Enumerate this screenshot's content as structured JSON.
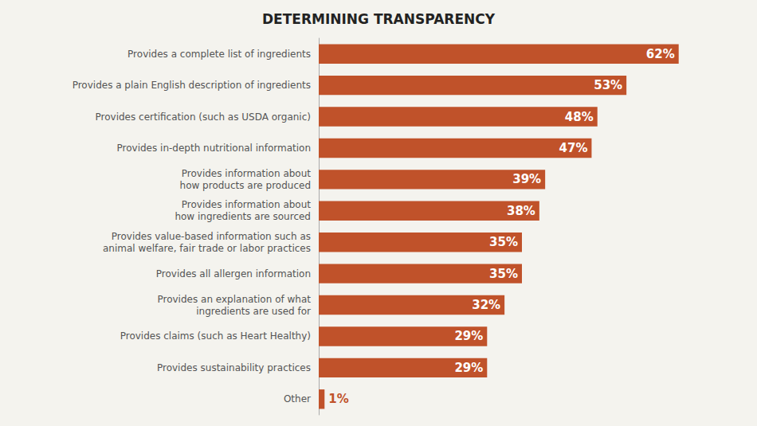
{
  "chart_data": {
    "type": "bar",
    "orientation": "horizontal",
    "title": "DETERMINING TRANSPARENCY",
    "categories": [
      "Provides a complete list of ingredients",
      "Provides a plain English description of ingredients",
      "Provides certification (such as USDA organic)",
      "Provides in-depth nutritional information",
      "Provides information about\nhow products are produced",
      "Provides information about\nhow ingredients are sourced",
      "Provides value-based information such as\nanimal welfare, fair trade or labor practices",
      "Provides all allergen information",
      "Provides an explanation of what\ningredients are used for",
      "Provides claims (such as Heart Healthy)",
      "Provides sustainability practices",
      "Other"
    ],
    "values": [
      62,
      53,
      48,
      47,
      39,
      38,
      35,
      35,
      32,
      29,
      29,
      1
    ],
    "value_labels": [
      "62%",
      "53%",
      "48%",
      "47%",
      "39%",
      "38%",
      "35%",
      "35%",
      "32%",
      "29%",
      "29%",
      "1%"
    ],
    "data_labels": true,
    "color": "#c0522a",
    "xlim": [
      0,
      70
    ],
    "grid": false,
    "tick_labels": "y"
  }
}
